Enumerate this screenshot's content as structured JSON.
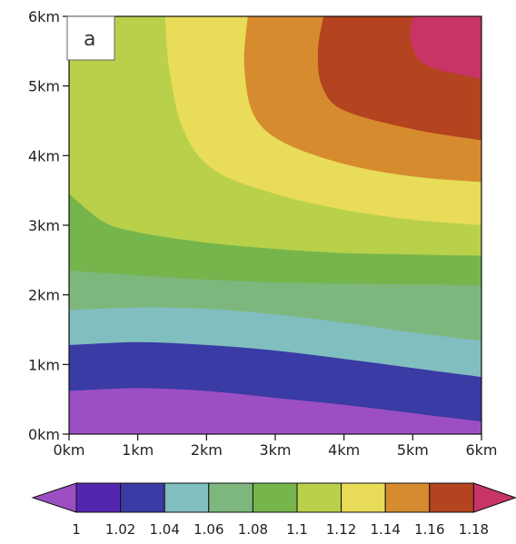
{
  "chart_data": {
    "type": "heatmap",
    "panel_label": "a",
    "x_ticks": [
      "0km",
      "1km",
      "2km",
      "3km",
      "4km",
      "5km",
      "6km"
    ],
    "y_ticks": [
      "0km",
      "1km",
      "2km",
      "3km",
      "4km",
      "5km",
      "6km"
    ],
    "xlim": [
      0,
      6
    ],
    "ylim": [
      0,
      6
    ],
    "xlabel": "",
    "ylabel": "",
    "levels": [
      1,
      1.02,
      1.04,
      1.06,
      1.08,
      1.1,
      1.12,
      1.14,
      1.16,
      1.18
    ],
    "colorbar_labels": [
      "1",
      "1.02",
      "1.04",
      "1.06",
      "1.08",
      "1.1",
      "1.12",
      "1.14",
      "1.16",
      "1.18"
    ],
    "colors": [
      "#9c4fc3",
      "#5426b0",
      "#3a3ba5",
      "#80bec0",
      "#7db77d",
      "#76b54c",
      "#b9d04a",
      "#e8dc58",
      "#d68b2e",
      "#b4431f",
      "#c83466"
    ],
    "contours": [
      {
        "level": 1.02,
        "points": [
          [
            0,
            0.62
          ],
          [
            1,
            0.66
          ],
          [
            2,
            0.62
          ],
          [
            3,
            0.52
          ],
          [
            4,
            0.42
          ],
          [
            5,
            0.3
          ],
          [
            6,
            0.18
          ]
        ]
      },
      {
        "level": 1.04,
        "points": [
          [
            0,
            1.28
          ],
          [
            1,
            1.32
          ],
          [
            2,
            1.28
          ],
          [
            3,
            1.2
          ],
          [
            4,
            1.08
          ],
          [
            5,
            0.95
          ],
          [
            6,
            0.82
          ]
        ]
      },
      {
        "level": 1.06,
        "points": [
          [
            0,
            1.78
          ],
          [
            1,
            1.82
          ],
          [
            2,
            1.8
          ],
          [
            3,
            1.72
          ],
          [
            4,
            1.6
          ],
          [
            5,
            1.46
          ],
          [
            6,
            1.34
          ]
        ]
      },
      {
        "level": 1.08,
        "points": [
          [
            0,
            2.35
          ],
          [
            1,
            2.28
          ],
          [
            2,
            2.22
          ],
          [
            3,
            2.18
          ],
          [
            4,
            2.16
          ],
          [
            5,
            2.15
          ],
          [
            6,
            2.14
          ]
        ]
      },
      {
        "level": 1.1,
        "points": [
          [
            0,
            3.45
          ],
          [
            0.5,
            3.05
          ],
          [
            1,
            2.9
          ],
          [
            2,
            2.75
          ],
          [
            3,
            2.66
          ],
          [
            4,
            2.6
          ],
          [
            5,
            2.58
          ],
          [
            6,
            2.56
          ]
        ]
      },
      {
        "level": 1.12,
        "points": [
          [
            1.4,
            6
          ],
          [
            1.45,
            5.3
          ],
          [
            1.65,
            4.4
          ],
          [
            2.1,
            3.8
          ],
          [
            3,
            3.45
          ],
          [
            4,
            3.22
          ],
          [
            5,
            3.08
          ],
          [
            6,
            3.0
          ]
        ]
      },
      {
        "level": 1.14,
        "points": [
          [
            2.6,
            6
          ],
          [
            2.55,
            5.3
          ],
          [
            2.68,
            4.6
          ],
          [
            3.1,
            4.2
          ],
          [
            4,
            3.88
          ],
          [
            5,
            3.7
          ],
          [
            6,
            3.62
          ]
        ]
      },
      {
        "level": 1.16,
        "points": [
          [
            3.7,
            6
          ],
          [
            3.62,
            5.5
          ],
          [
            3.68,
            5.0
          ],
          [
            4,
            4.65
          ],
          [
            5,
            4.38
          ],
          [
            6,
            4.22
          ]
        ]
      },
      {
        "level": 1.18,
        "points": [
          [
            5.0,
            6
          ],
          [
            4.97,
            5.65
          ],
          [
            5.2,
            5.3
          ],
          [
            6,
            5.1
          ]
        ]
      }
    ]
  }
}
